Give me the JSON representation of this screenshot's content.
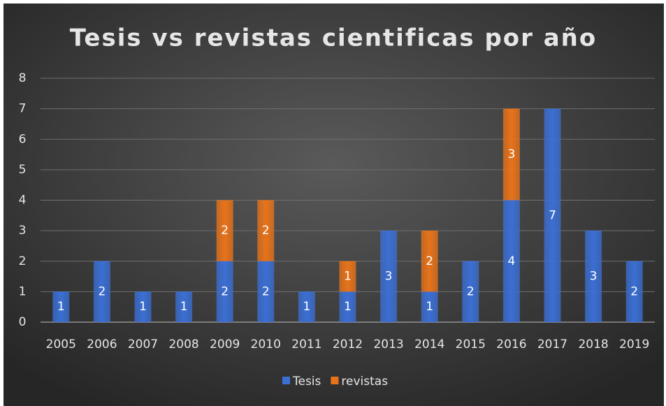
{
  "chart_data": {
    "type": "stacked_bar",
    "title": "Tesis vs revistas cientificas por año",
    "categories": [
      "2005",
      "2006",
      "2007",
      "2008",
      "2009",
      "2010",
      "2011",
      "2012",
      "2013",
      "2014",
      "2015",
      "2016",
      "2017",
      "2018",
      "2019"
    ],
    "series": [
      {
        "name": "Tesis",
        "color": "#3b6fd4",
        "values": [
          1,
          2,
          1,
          1,
          2,
          2,
          1,
          1,
          3,
          1,
          2,
          4,
          7,
          3,
          2
        ]
      },
      {
        "name": "revistas",
        "color": "#e8731a",
        "values": [
          null,
          null,
          null,
          null,
          2,
          2,
          null,
          1,
          null,
          2,
          null,
          3,
          null,
          null,
          null
        ]
      }
    ],
    "ylim": [
      0,
      8
    ],
    "yticks": [
      0,
      1,
      2,
      3,
      4,
      5,
      6,
      7,
      8
    ],
    "grid": true,
    "legend": "bottom"
  }
}
